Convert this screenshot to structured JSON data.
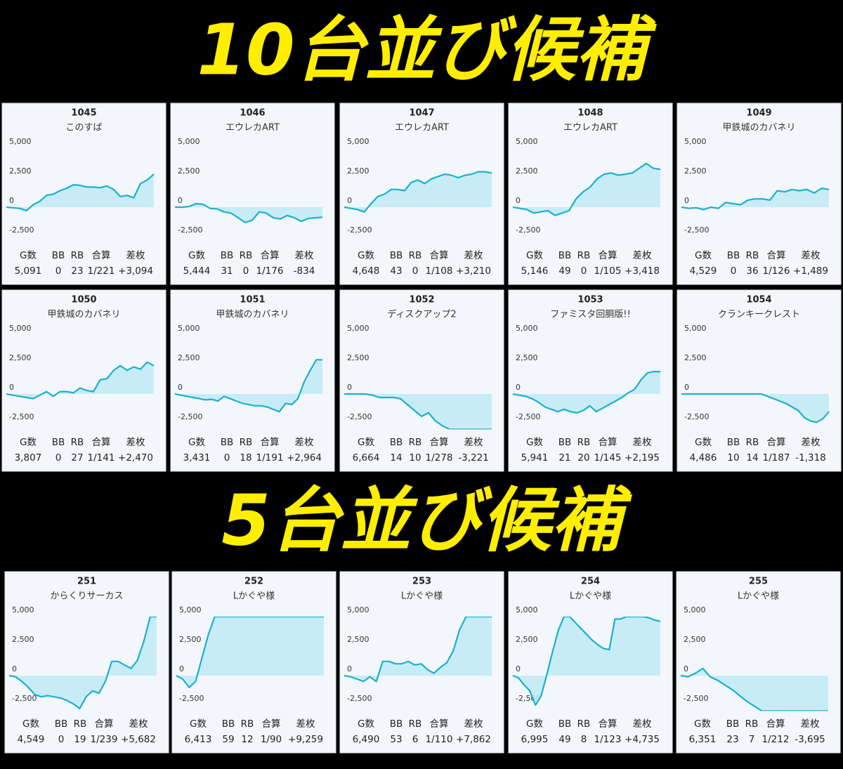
{
  "headings": [
    "10台並び候補",
    "5台並び候補"
  ],
  "stat_headers": [
    "G数",
    "BB",
    "RB",
    "合算",
    "差枚"
  ],
  "chart_data": [
    {
      "type": "line",
      "title": "1045",
      "subtitle": "このすば",
      "color": "#1bb0cf",
      "ylim": [
        -3000,
        5000
      ],
      "yticks": [
        {
          "value": 5000,
          "label": "5,000"
        },
        {
          "value": 2500,
          "label": "2,500"
        },
        0,
        {
          "value": -2500,
          "label": "-2,500"
        }
      ],
      "values": [
        0,
        -50,
        -100,
        -300,
        200,
        500,
        1000,
        1100,
        1400,
        1600,
        1900,
        1850,
        1700,
        1700,
        1650,
        1800,
        1500,
        900,
        1000,
        800,
        2000,
        2300,
        2800
      ],
      "stats": [
        "5,091",
        "0",
        "23",
        "1/221",
        "+3,094"
      ]
    },
    {
      "type": "line",
      "title": "1046",
      "subtitle": "エウレカART",
      "color": "#1bb0cf",
      "ylim": [
        -3000,
        5000
      ],
      "yticks": [
        {
          "value": 5000,
          "label": "5,000"
        },
        {
          "value": 2500,
          "label": "2,500"
        },
        0,
        {
          "value": -2500,
          "label": "-2,500"
        }
      ],
      "values": [
        0,
        0,
        50,
        300,
        250,
        -100,
        -150,
        -400,
        -500,
        -900,
        -1300,
        -1100,
        -400,
        -500,
        -900,
        -1000,
        -700,
        -900,
        -1200,
        -950,
        -900,
        -850
      ],
      "stats": [
        "5,444",
        "31",
        "0",
        "1/176",
        "-834"
      ]
    },
    {
      "type": "line",
      "title": "1047",
      "subtitle": "エウレカART",
      "color": "#1bb0cf",
      "ylim": [
        -3000,
        5000
      ],
      "yticks": [
        {
          "value": 5000,
          "label": "5,000"
        },
        {
          "value": 2500,
          "label": "2,500"
        },
        0,
        {
          "value": -2500,
          "label": "-2,500"
        }
      ],
      "values": [
        0,
        -100,
        -200,
        -400,
        300,
        900,
        1100,
        1500,
        1500,
        1400,
        2100,
        2300,
        2000,
        2400,
        2600,
        2800,
        2700,
        2500,
        2700,
        2800,
        3000,
        3000,
        2900
      ],
      "stats": [
        "4,648",
        "43",
        "0",
        "1/108",
        "+3,210"
      ]
    },
    {
      "type": "line",
      "title": "1048",
      "subtitle": "エウレカART",
      "color": "#1bb0cf",
      "ylim": [
        -3000,
        5000
      ],
      "yticks": [
        {
          "value": 5000,
          "label": "5,000"
        },
        {
          "value": 2500,
          "label": "2,500"
        },
        0,
        {
          "value": -2500,
          "label": "-2,500"
        }
      ],
      "values": [
        0,
        -100,
        -200,
        -500,
        -400,
        -300,
        -700,
        -500,
        -300,
        700,
        1300,
        1700,
        2400,
        2800,
        2900,
        2700,
        2800,
        2900,
        3300,
        3700,
        3300,
        3200
      ],
      "stats": [
        "5,146",
        "49",
        "0",
        "1/105",
        "+3,418"
      ]
    },
    {
      "type": "line",
      "title": "1049",
      "subtitle": "甲鉄城のカバネリ",
      "color": "#1bb0cf",
      "ylim": [
        -3000,
        5000
      ],
      "yticks": [
        {
          "value": 5000,
          "label": "5,000"
        },
        {
          "value": 2500,
          "label": "2,500"
        },
        0,
        {
          "value": -2500,
          "label": "-2,500"
        }
      ],
      "values": [
        0,
        -100,
        -50,
        -200,
        0,
        -100,
        400,
        300,
        200,
        600,
        700,
        700,
        600,
        1400,
        1300,
        1500,
        1400,
        1500,
        1200,
        1600,
        1500
      ],
      "stats": [
        "4,529",
        "0",
        "36",
        "1/126",
        "+1,489"
      ]
    },
    {
      "type": "line",
      "title": "1050",
      "subtitle": "甲鉄城のカバネリ",
      "color": "#1bb0cf",
      "ylim": [
        -3000,
        5000
      ],
      "yticks": [
        {
          "value": 5000,
          "label": "5,000"
        },
        {
          "value": 2500,
          "label": "2,500"
        },
        0,
        {
          "value": -2500,
          "label": "-2,500"
        }
      ],
      "values": [
        0,
        -100,
        -200,
        -300,
        -400,
        -100,
        200,
        -200,
        200,
        200,
        100,
        500,
        300,
        200,
        1200,
        1300,
        2000,
        2400,
        2000,
        2300,
        2100,
        2700,
        2400
      ],
      "stats": [
        "3,807",
        "0",
        "27",
        "1/141",
        "+2,470"
      ]
    },
    {
      "type": "line",
      "title": "1051",
      "subtitle": "甲鉄城のカバネリ",
      "color": "#1bb0cf",
      "ylim": [
        -3000,
        5000
      ],
      "yticks": [
        {
          "value": 5000,
          "label": "5,000"
        },
        {
          "value": 2500,
          "label": "2,500"
        },
        0,
        {
          "value": -2500,
          "label": "-2,500"
        }
      ],
      "values": [
        0,
        -100,
        -200,
        -300,
        -400,
        -500,
        -450,
        -600,
        -200,
        -400,
        -600,
        -800,
        -900,
        -1000,
        -1000,
        -1100,
        -1300,
        -1500,
        -800,
        -900,
        -400,
        1000,
        2000,
        2900,
        2900
      ],
      "stats": [
        "3,431",
        "0",
        "18",
        "1/191",
        "+2,964"
      ]
    },
    {
      "type": "line",
      "title": "1052",
      "subtitle": "ディスクアップ2",
      "color": "#1bb0cf",
      "ylim": [
        -3000,
        5000
      ],
      "yticks": [
        {
          "value": 5000,
          "label": "5,000"
        },
        {
          "value": 2500,
          "label": "2,500"
        },
        0,
        {
          "value": -2500,
          "label": "-2,500"
        }
      ],
      "values": [
        0,
        0,
        0,
        0,
        -100,
        -300,
        -300,
        -300,
        -400,
        -900,
        -1400,
        -1900,
        -1600,
        -2300,
        -2700,
        -3000,
        -3000,
        -3000,
        -3000,
        -3000,
        -3000,
        -3000
      ],
      "stats": [
        "6,664",
        "14",
        "10",
        "1/278",
        "-3,221"
      ]
    },
    {
      "type": "line",
      "title": "1053",
      "subtitle": "ファミスタ回胴版!!",
      "color": "#1bb0cf",
      "ylim": [
        -3000,
        5000
      ],
      "yticks": [
        {
          "value": 5000,
          "label": "5,000"
        },
        {
          "value": 2500,
          "label": "2,500"
        },
        0,
        {
          "value": -2500,
          "label": "-2,500"
        }
      ],
      "values": [
        0,
        -100,
        -200,
        -400,
        -700,
        -1100,
        -1300,
        -1500,
        -1300,
        -1500,
        -1600,
        -1400,
        -1000,
        -1500,
        -1200,
        -900,
        -600,
        -300,
        100,
        400,
        1200,
        1800,
        1900,
        1900
      ],
      "stats": [
        "5,941",
        "21",
        "20",
        "1/145",
        "+2,195"
      ]
    },
    {
      "type": "line",
      "title": "1054",
      "subtitle": "クランキークレスト",
      "color": "#1bb0cf",
      "ylim": [
        -3000,
        5000
      ],
      "yticks": [
        {
          "value": 5000,
          "label": "5,000"
        },
        {
          "value": 2500,
          "label": "2,500"
        },
        0,
        {
          "value": -2500,
          "label": "-2,500"
        }
      ],
      "values": [
        0,
        0,
        0,
        0,
        0,
        0,
        0,
        0,
        0,
        0,
        0,
        0,
        0,
        0,
        -200,
        -400,
        -600,
        -800,
        -1100,
        -1400,
        -2000,
        -2300,
        -2400,
        -2100,
        -1500
      ],
      "stats": [
        "4,486",
        "10",
        "14",
        "1/187",
        "-1,318"
      ]
    },
    {
      "type": "line",
      "title": "251",
      "subtitle": "からくりサーカス",
      "color": "#1bb0cf",
      "ylim": [
        -3000,
        5000
      ],
      "yticks": [
        {
          "value": 5000,
          "label": "5,000"
        },
        {
          "value": 2500,
          "label": "2,500"
        },
        0,
        {
          "value": -2500,
          "label": "-2,500"
        }
      ],
      "values": [
        0,
        -100,
        -500,
        -1000,
        -1600,
        -1800,
        -1700,
        -1800,
        -1900,
        -2100,
        -2400,
        -2800,
        -1800,
        -1300,
        -1500,
        -500,
        1200,
        1200,
        900,
        600,
        1300,
        2900,
        5000,
        5000
      ],
      "stats": [
        "4,549",
        "0",
        "19",
        "1/239",
        "+5,682"
      ]
    },
    {
      "type": "line",
      "title": "252",
      "subtitle": "Lかぐや様",
      "color": "#1bb0cf",
      "ylim": [
        -3000,
        5000
      ],
      "yticks": [
        {
          "value": 5000,
          "label": "5,000"
        },
        {
          "value": 2500,
          "label": "2,500"
        },
        0,
        {
          "value": -2500,
          "label": "-2,500"
        }
      ],
      "values": [
        0,
        -300,
        -1000,
        -500,
        1500,
        3500,
        5000,
        5000,
        5000,
        5000,
        5000,
        5000,
        5000,
        5000,
        5000,
        5000,
        5000,
        5000,
        5000,
        5000,
        5000,
        5000,
        5000,
        5000
      ],
      "stats": [
        "6,413",
        "59",
        "12",
        "1/90",
        "+9,259"
      ]
    },
    {
      "type": "line",
      "title": "253",
      "subtitle": "Lかぐや様",
      "color": "#1bb0cf",
      "ylim": [
        -3000,
        5000
      ],
      "yticks": [
        {
          "value": 5000,
          "label": "5,000"
        },
        {
          "value": 2500,
          "label": "2,500"
        },
        0,
        {
          "value": -2500,
          "label": "-2,500"
        }
      ],
      "values": [
        0,
        -100,
        -300,
        -500,
        -100,
        -500,
        1200,
        1200,
        1000,
        1000,
        1200,
        900,
        1000,
        500,
        200,
        700,
        1100,
        2100,
        3900,
        5000,
        5000,
        5000,
        5000,
        5000
      ],
      "stats": [
        "6,490",
        "53",
        "6",
        "1/110",
        "+7,862"
      ]
    },
    {
      "type": "line",
      "title": "254",
      "subtitle": "Lかぐや様",
      "color": "#1bb0cf",
      "ylim": [
        -3000,
        5000
      ],
      "yticks": [
        {
          "value": 5000,
          "label": "5,000"
        },
        {
          "value": 2500,
          "label": "2,500"
        },
        0,
        {
          "value": -2500,
          "label": "-2,500"
        }
      ],
      "values": [
        0,
        -200,
        -800,
        -1300,
        -2500,
        -1700,
        100,
        2000,
        3800,
        5000,
        5000,
        4500,
        4000,
        3500,
        3000,
        2600,
        2300,
        2200,
        4800,
        4800,
        5000,
        5000,
        5000,
        5000,
        4900,
        4700,
        4600
      ],
      "stats": [
        "6,995",
        "49",
        "8",
        "1/123",
        "+4,735"
      ]
    },
    {
      "type": "line",
      "title": "255",
      "subtitle": "Lかぐや様",
      "color": "#1bb0cf",
      "ylim": [
        -3000,
        5000
      ],
      "yticks": [
        {
          "value": 5000,
          "label": "5,000"
        },
        {
          "value": 2500,
          "label": "2,500"
        },
        0,
        {
          "value": -2500,
          "label": "-2,500"
        }
      ],
      "values": [
        0,
        -100,
        200,
        600,
        -100,
        -400,
        -800,
        -1200,
        -1700,
        -2200,
        -2600,
        -3000,
        -3000,
        -3000,
        -3000,
        -3000,
        -3000,
        -3000,
        -3000,
        -3000,
        -3000
      ],
      "stats": [
        "6,351",
        "23",
        "7",
        "1/212",
        "-3,695"
      ]
    }
  ]
}
